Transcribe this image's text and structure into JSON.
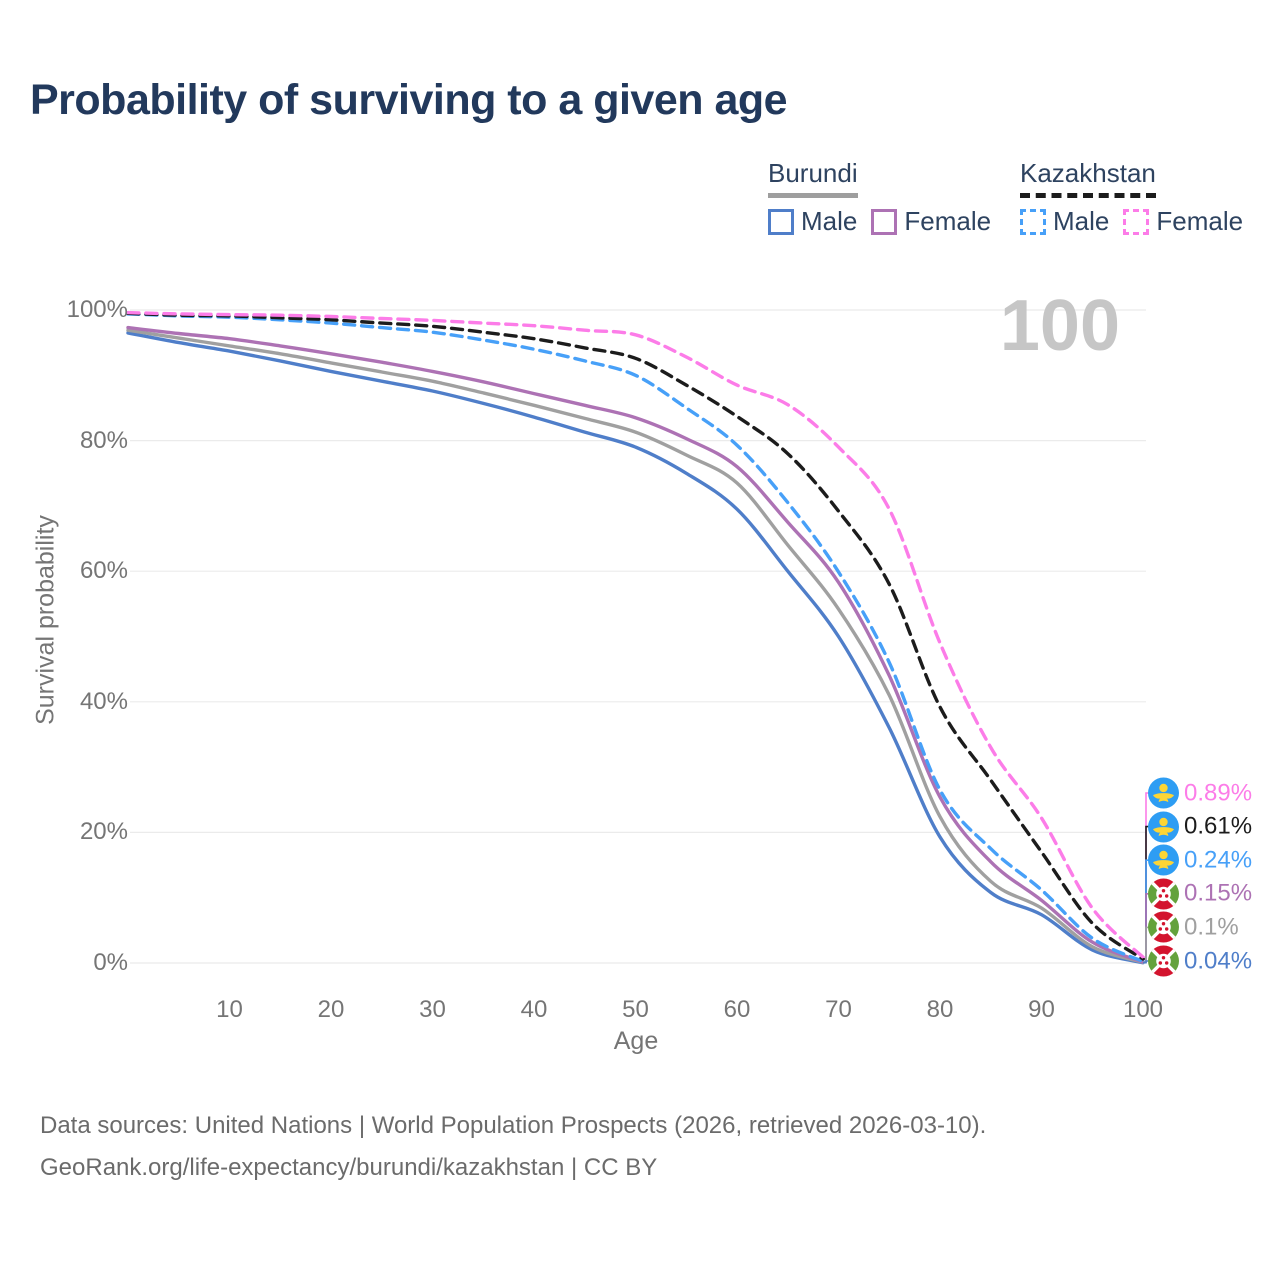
{
  "title": "Probability of surviving to a given age",
  "watermark": "100",
  "legend": {
    "burundi": {
      "name": "Burundi",
      "male_label": "Male",
      "female_label": "Female"
    },
    "kazakhstan": {
      "name": "Kazakhstan",
      "male_label": "Male",
      "female_label": "Female"
    }
  },
  "axes": {
    "x_label": "Age",
    "y_label": "Survival probability"
  },
  "footer": {
    "line1": "Data sources: United Nations | World Population Prospects (2026, retrieved 2026-03-10).",
    "line2": "GeoRank.org/life-expectancy/burundi/kazakhstan | CC BY"
  },
  "colors": {
    "title": "#22395c",
    "axis_text": "#757575",
    "gridline": "#ebebeb",
    "watermark": "#c6c6c6",
    "burundi_underline": "#9e9e9e",
    "kazakhstan_underline": "#1c1c1c"
  },
  "chart_data": {
    "type": "line",
    "title": "Probability of surviving to a given age",
    "xlabel": "Age",
    "ylabel": "Survival probability",
    "xlim": [
      0,
      100
    ],
    "ylim": [
      0,
      100
    ],
    "grid": "horizontal-only",
    "legend_position": "top-right",
    "x_ticks": [
      10,
      20,
      30,
      40,
      50,
      60,
      70,
      80,
      90,
      100
    ],
    "y_ticks": [
      {
        "value": 0,
        "label": "0%"
      },
      {
        "value": 20,
        "label": "20%"
      },
      {
        "value": 40,
        "label": "40%"
      },
      {
        "value": 60,
        "label": "60%"
      },
      {
        "value": 80,
        "label": "80%"
      },
      {
        "value": 100,
        "label": "100%"
      }
    ],
    "ages": [
      0,
      5,
      10,
      15,
      20,
      25,
      30,
      35,
      40,
      45,
      50,
      55,
      60,
      65,
      70,
      75,
      80,
      85,
      90,
      95,
      100
    ],
    "series": [
      {
        "id": "burundi-male",
        "country": "Burundi",
        "sex": "Male",
        "style": "solid",
        "color": "#4f7ec9",
        "values": [
          96.5,
          95.0,
          93.7,
          92.2,
          90.6,
          89.1,
          87.6,
          85.7,
          83.6,
          81.3,
          79.0,
          75.0,
          69.5,
          60.0,
          50.0,
          36.0,
          19.3,
          10.8,
          7.4,
          2.0,
          0.04
        ]
      },
      {
        "id": "burundi-total",
        "country": "Burundi",
        "sex": "Both",
        "style": "solid",
        "color": "#a0a0a0",
        "values": [
          96.9,
          95.7,
          94.5,
          93.3,
          91.9,
          90.5,
          89.1,
          87.3,
          85.4,
          83.4,
          81.3,
          77.8,
          73.5,
          64.0,
          54.2,
          41.0,
          22.4,
          12.5,
          8.4,
          2.5,
          0.1
        ]
      },
      {
        "id": "burundi-female",
        "country": "Burundi",
        "sex": "Female",
        "style": "solid",
        "color": "#ad72b4",
        "values": [
          97.3,
          96.4,
          95.6,
          94.5,
          93.3,
          92.0,
          90.6,
          89.0,
          87.2,
          85.4,
          83.5,
          80.3,
          76.0,
          67.5,
          58.3,
          44.0,
          25.4,
          15.5,
          9.6,
          3.2,
          0.15
        ]
      },
      {
        "id": "kazakhstan-male",
        "country": "Kazakhstan",
        "sex": "Male",
        "style": "dashed",
        "color": "#47a0f8",
        "values": [
          99.4,
          99.1,
          98.9,
          98.5,
          98.0,
          97.3,
          96.6,
          95.4,
          94.0,
          92.2,
          90.0,
          85.0,
          79.3,
          70.5,
          59.9,
          46.0,
          26.5,
          17.5,
          11.2,
          3.8,
          0.24
        ]
      },
      {
        "id": "kazakhstan-total",
        "country": "Kazakhstan",
        "sex": "Both",
        "style": "dashed",
        "color": "#1c1c1c",
        "values": [
          99.5,
          99.2,
          99.1,
          98.8,
          98.5,
          98.0,
          97.5,
          96.6,
          95.6,
          94.2,
          92.6,
          88.5,
          83.7,
          78.0,
          69.2,
          58.0,
          39.2,
          28.0,
          17.0,
          6.1,
          0.61
        ]
      },
      {
        "id": "kazakhstan-female",
        "country": "Kazakhstan",
        "sex": "Female",
        "style": "dashed",
        "color": "#fc7ce8",
        "values": [
          99.6,
          99.4,
          99.3,
          99.2,
          99.0,
          98.7,
          98.4,
          98.0,
          97.6,
          96.9,
          96.2,
          92.8,
          88.5,
          85.5,
          79.0,
          69.5,
          49.0,
          33.0,
          22.2,
          8.4,
          0.89
        ]
      }
    ],
    "end_labels": [
      {
        "series": "kazakhstan-female",
        "flag": "kazakhstan",
        "value": "0.89%"
      },
      {
        "series": "kazakhstan-total",
        "flag": "kazakhstan",
        "value": "0.61%"
      },
      {
        "series": "kazakhstan-male",
        "flag": "kazakhstan",
        "value": "0.24%"
      },
      {
        "series": "burundi-female",
        "flag": "burundi",
        "value": "0.15%"
      },
      {
        "series": "burundi-total",
        "flag": "burundi",
        "value": "0.1%"
      },
      {
        "series": "burundi-male",
        "flag": "burundi",
        "value": "0.04%"
      }
    ]
  }
}
